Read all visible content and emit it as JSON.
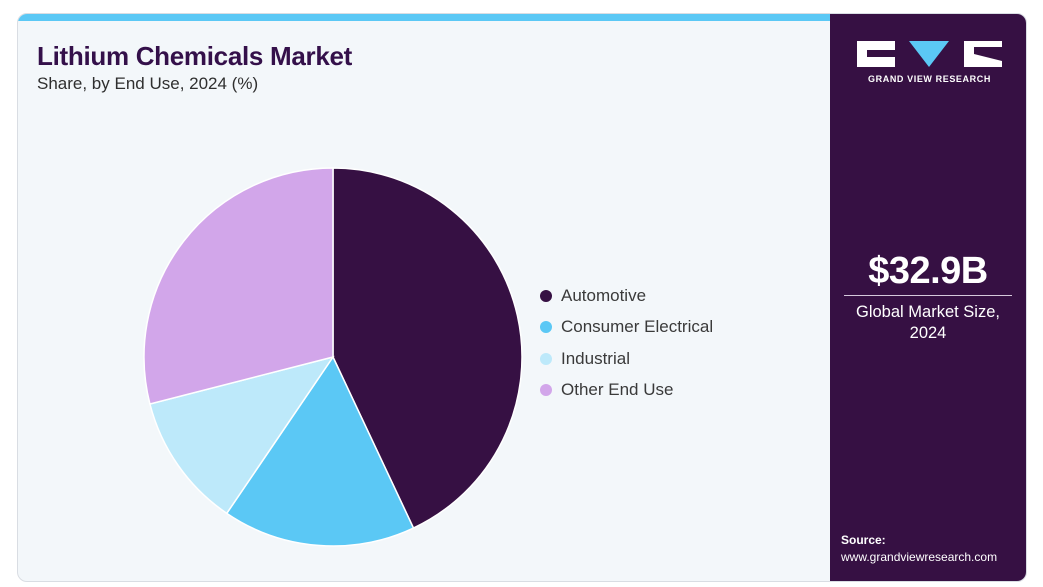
{
  "header": {
    "title": "Lithium Chemicals Market",
    "subtitle": "Share, by End Use, 2024 (%)"
  },
  "brand": {
    "name": "GRAND VIEW RESEARCH"
  },
  "summary": {
    "value": "$32.9B",
    "caption_line1": "Global Market Size,",
    "caption_line2": "2024"
  },
  "source": {
    "label": "Source:",
    "url": "www.grandviewresearch.com"
  },
  "colors": {
    "accent_bar": "#5bc8f5",
    "sidebar": "#361043",
    "background": "#f3f7fa"
  },
  "chart_data": {
    "type": "pie",
    "categories": [
      "Automotive",
      "Consumer Electrical",
      "Industrial",
      "Other End Use"
    ],
    "values": [
      43.0,
      16.5,
      11.5,
      29.0
    ],
    "colors": [
      "#361043",
      "#5bc8f5",
      "#bde9fa",
      "#d2a6ea"
    ],
    "start_angle_deg": 0,
    "direction": "clockwise",
    "legend_position": "right"
  }
}
